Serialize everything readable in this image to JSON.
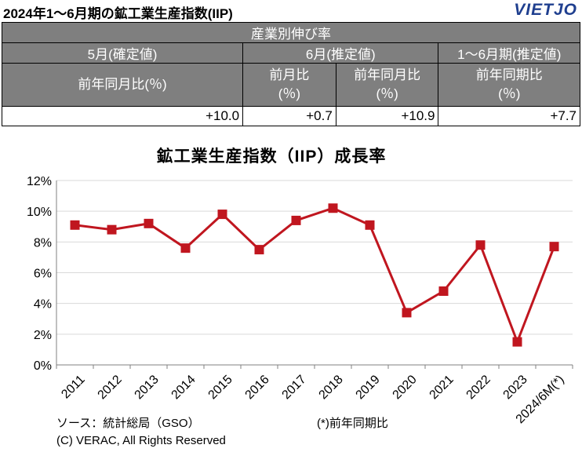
{
  "header": {
    "title": "2024年1～6月期の鉱工業生産指数(IIP)",
    "logo": "VIETJO"
  },
  "table": {
    "group_header": "産業別伸び率",
    "period_headers": [
      "5月(確定値)",
      "6月(推定値)",
      "1～6月期(推定値)"
    ],
    "metric_headers": {
      "may_yoy": "前年同月比(％)",
      "jun_mom_line1": "前月比",
      "jun_mom_line2": "(％)",
      "jun_yoy_line1": "前年同月比",
      "jun_yoy_line2": "(％)",
      "h1_yoy_line1": "前年同期比",
      "h1_yoy_line2": "(％)"
    },
    "values": [
      "+10.0",
      "+0.7",
      "+10.9",
      "+7.7"
    ]
  },
  "chart_data": {
    "type": "line",
    "title": "鉱工業生産指数（IIP）成長率",
    "categories": [
      "2011",
      "2012",
      "2013",
      "2014",
      "2015",
      "2016",
      "2017",
      "2018",
      "2019",
      "2020",
      "2021",
      "2022",
      "2023",
      "2024/6M(*)"
    ],
    "values": [
      9.1,
      8.8,
      9.2,
      7.6,
      9.8,
      7.5,
      9.4,
      10.2,
      9.1,
      3.4,
      4.8,
      7.8,
      1.5,
      7.7
    ],
    "unit": "%",
    "ylim": [
      0,
      12
    ],
    "yticks": [
      "0%",
      "2%",
      "4%",
      "6%",
      "8%",
      "10%",
      "12%"
    ],
    "grid": true,
    "color": "#c0161f"
  },
  "footer": {
    "source": "ソース：統計総局（GSO）",
    "note": "(*)前年同期比",
    "copyright": "(C) VERAC, All Rights Reserved"
  }
}
